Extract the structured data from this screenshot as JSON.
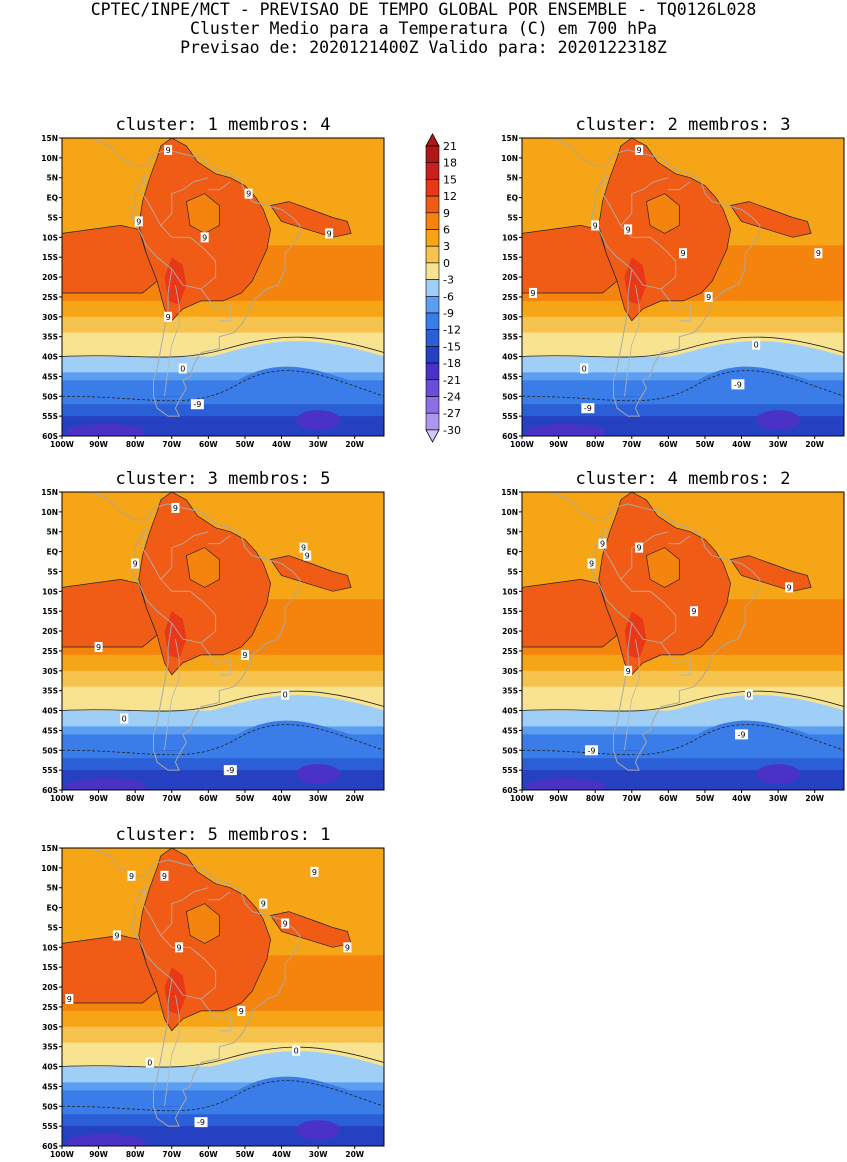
{
  "header": {
    "line1": "CPTEC/INPE/MCT - PREVISAO DE TEMPO GLOBAL POR ENSEMBLE - TQ0126L028",
    "line2": "Cluster Medio para a Temperatura (C) em 700 hPa",
    "line3": "Previsao de: 2020121400Z   Valido para: 2020122318Z"
  },
  "axes": {
    "lat_ticks": [
      "15N",
      "10N",
      "5N",
      "EQ",
      "5S",
      "10S",
      "15S",
      "20S",
      "25S",
      "30S",
      "35S",
      "40S",
      "45S",
      "50S",
      "55S",
      "60S"
    ],
    "lon_ticks": [
      "100W",
      "90W",
      "80W",
      "70W",
      "60W",
      "50W",
      "40W",
      "30W",
      "20W"
    ]
  },
  "panels": [
    {
      "title": "cluster: 1   membros: 4",
      "contour_labels": [
        {
          "lon": -71,
          "lat": 12,
          "text": "9"
        },
        {
          "lon": -79,
          "lat": -6,
          "text": "9"
        },
        {
          "lon": -61,
          "lat": -10,
          "text": "9"
        },
        {
          "lon": -49,
          "lat": 1,
          "text": "9"
        },
        {
          "lon": -27,
          "lat": -9,
          "text": "9"
        },
        {
          "lon": -71,
          "lat": -30,
          "text": "9"
        },
        {
          "lon": -67,
          "lat": -43,
          "text": "0"
        },
        {
          "lon": -63,
          "lat": -52,
          "text": "-9"
        }
      ]
    },
    {
      "title": "cluster: 2   membros: 3",
      "contour_labels": [
        {
          "lon": -68,
          "lat": 12,
          "text": "9"
        },
        {
          "lon": -80,
          "lat": -7,
          "text": "9"
        },
        {
          "lon": -71,
          "lat": -8,
          "text": "9"
        },
        {
          "lon": -56,
          "lat": -14,
          "text": "9"
        },
        {
          "lon": -49,
          "lat": -25,
          "text": "9"
        },
        {
          "lon": -97,
          "lat": -24,
          "text": "9"
        },
        {
          "lon": -19,
          "lat": -14,
          "text": "9"
        },
        {
          "lon": -83,
          "lat": -43,
          "text": "0"
        },
        {
          "lon": -36,
          "lat": -37,
          "text": "0"
        },
        {
          "lon": -41,
          "lat": -47,
          "text": "-9"
        },
        {
          "lon": -82,
          "lat": -53,
          "text": "-9"
        }
      ]
    },
    {
      "title": "cluster: 3   membros: 5",
      "contour_labels": [
        {
          "lon": -69,
          "lat": 11,
          "text": "9"
        },
        {
          "lon": -80,
          "lat": -3,
          "text": "9"
        },
        {
          "lon": -33,
          "lat": -1,
          "text": "9"
        },
        {
          "lon": -34,
          "lat": 1,
          "text": "9"
        },
        {
          "lon": -90,
          "lat": -24,
          "text": "9"
        },
        {
          "lon": -50,
          "lat": -26,
          "text": "9"
        },
        {
          "lon": -83,
          "lat": -42,
          "text": "0"
        },
        {
          "lon": -39,
          "lat": -36,
          "text": "0"
        },
        {
          "lon": -54,
          "lat": -55,
          "text": "-9"
        }
      ]
    },
    {
      "title": "cluster: 4   membros: 2",
      "contour_labels": [
        {
          "lon": -78,
          "lat": 2,
          "text": "9"
        },
        {
          "lon": -68,
          "lat": 1,
          "text": "9"
        },
        {
          "lon": -81,
          "lat": -3,
          "text": "9"
        },
        {
          "lon": -53,
          "lat": -15,
          "text": "9"
        },
        {
          "lon": -27,
          "lat": -9,
          "text": "9"
        },
        {
          "lon": -71,
          "lat": -30,
          "text": "9"
        },
        {
          "lon": -38,
          "lat": -36,
          "text": "0"
        },
        {
          "lon": -40,
          "lat": -46,
          "text": "-9"
        },
        {
          "lon": -81,
          "lat": -50,
          "text": "-9"
        }
      ]
    },
    {
      "title": "cluster: 5   membros: 1",
      "contour_labels": [
        {
          "lon": -81,
          "lat": 8,
          "text": "9"
        },
        {
          "lon": -72,
          "lat": 8,
          "text": "9"
        },
        {
          "lon": -31,
          "lat": 9,
          "text": "9"
        },
        {
          "lon": -45,
          "lat": 1,
          "text": "9"
        },
        {
          "lon": -39,
          "lat": -4,
          "text": "9"
        },
        {
          "lon": -85,
          "lat": -7,
          "text": "9"
        },
        {
          "lon": -68,
          "lat": -10,
          "text": "9"
        },
        {
          "lon": -22,
          "lat": -10,
          "text": "9"
        },
        {
          "lon": -98,
          "lat": -23,
          "text": "9"
        },
        {
          "lon": -51,
          "lat": -26,
          "text": "9"
        },
        {
          "lon": -76,
          "lat": -39,
          "text": "0"
        },
        {
          "lon": -36,
          "lat": -36,
          "text": "0"
        },
        {
          "lon": -62,
          "lat": -54,
          "text": "-9"
        }
      ]
    }
  ],
  "colorbar": {
    "labels": [
      "21",
      "18",
      "15",
      "12",
      "9",
      "6",
      "3",
      "0",
      "-3",
      "-6",
      "-9",
      "-12",
      "-15",
      "-18",
      "-21",
      "-24",
      "-27",
      "-30"
    ],
    "colors": [
      "#b01818",
      "#c8201e",
      "#e83818",
      "#f05c16",
      "#f4840e",
      "#f6a516",
      "#f5c34e",
      "#f8e490",
      "#9fcff6",
      "#5c9ef0",
      "#3a7de8",
      "#2a5fd8",
      "#2640c2",
      "#4a32c6",
      "#6e4cda",
      "#8c6ee6",
      "#ad96ee",
      "#d4c8f6"
    ]
  }
}
